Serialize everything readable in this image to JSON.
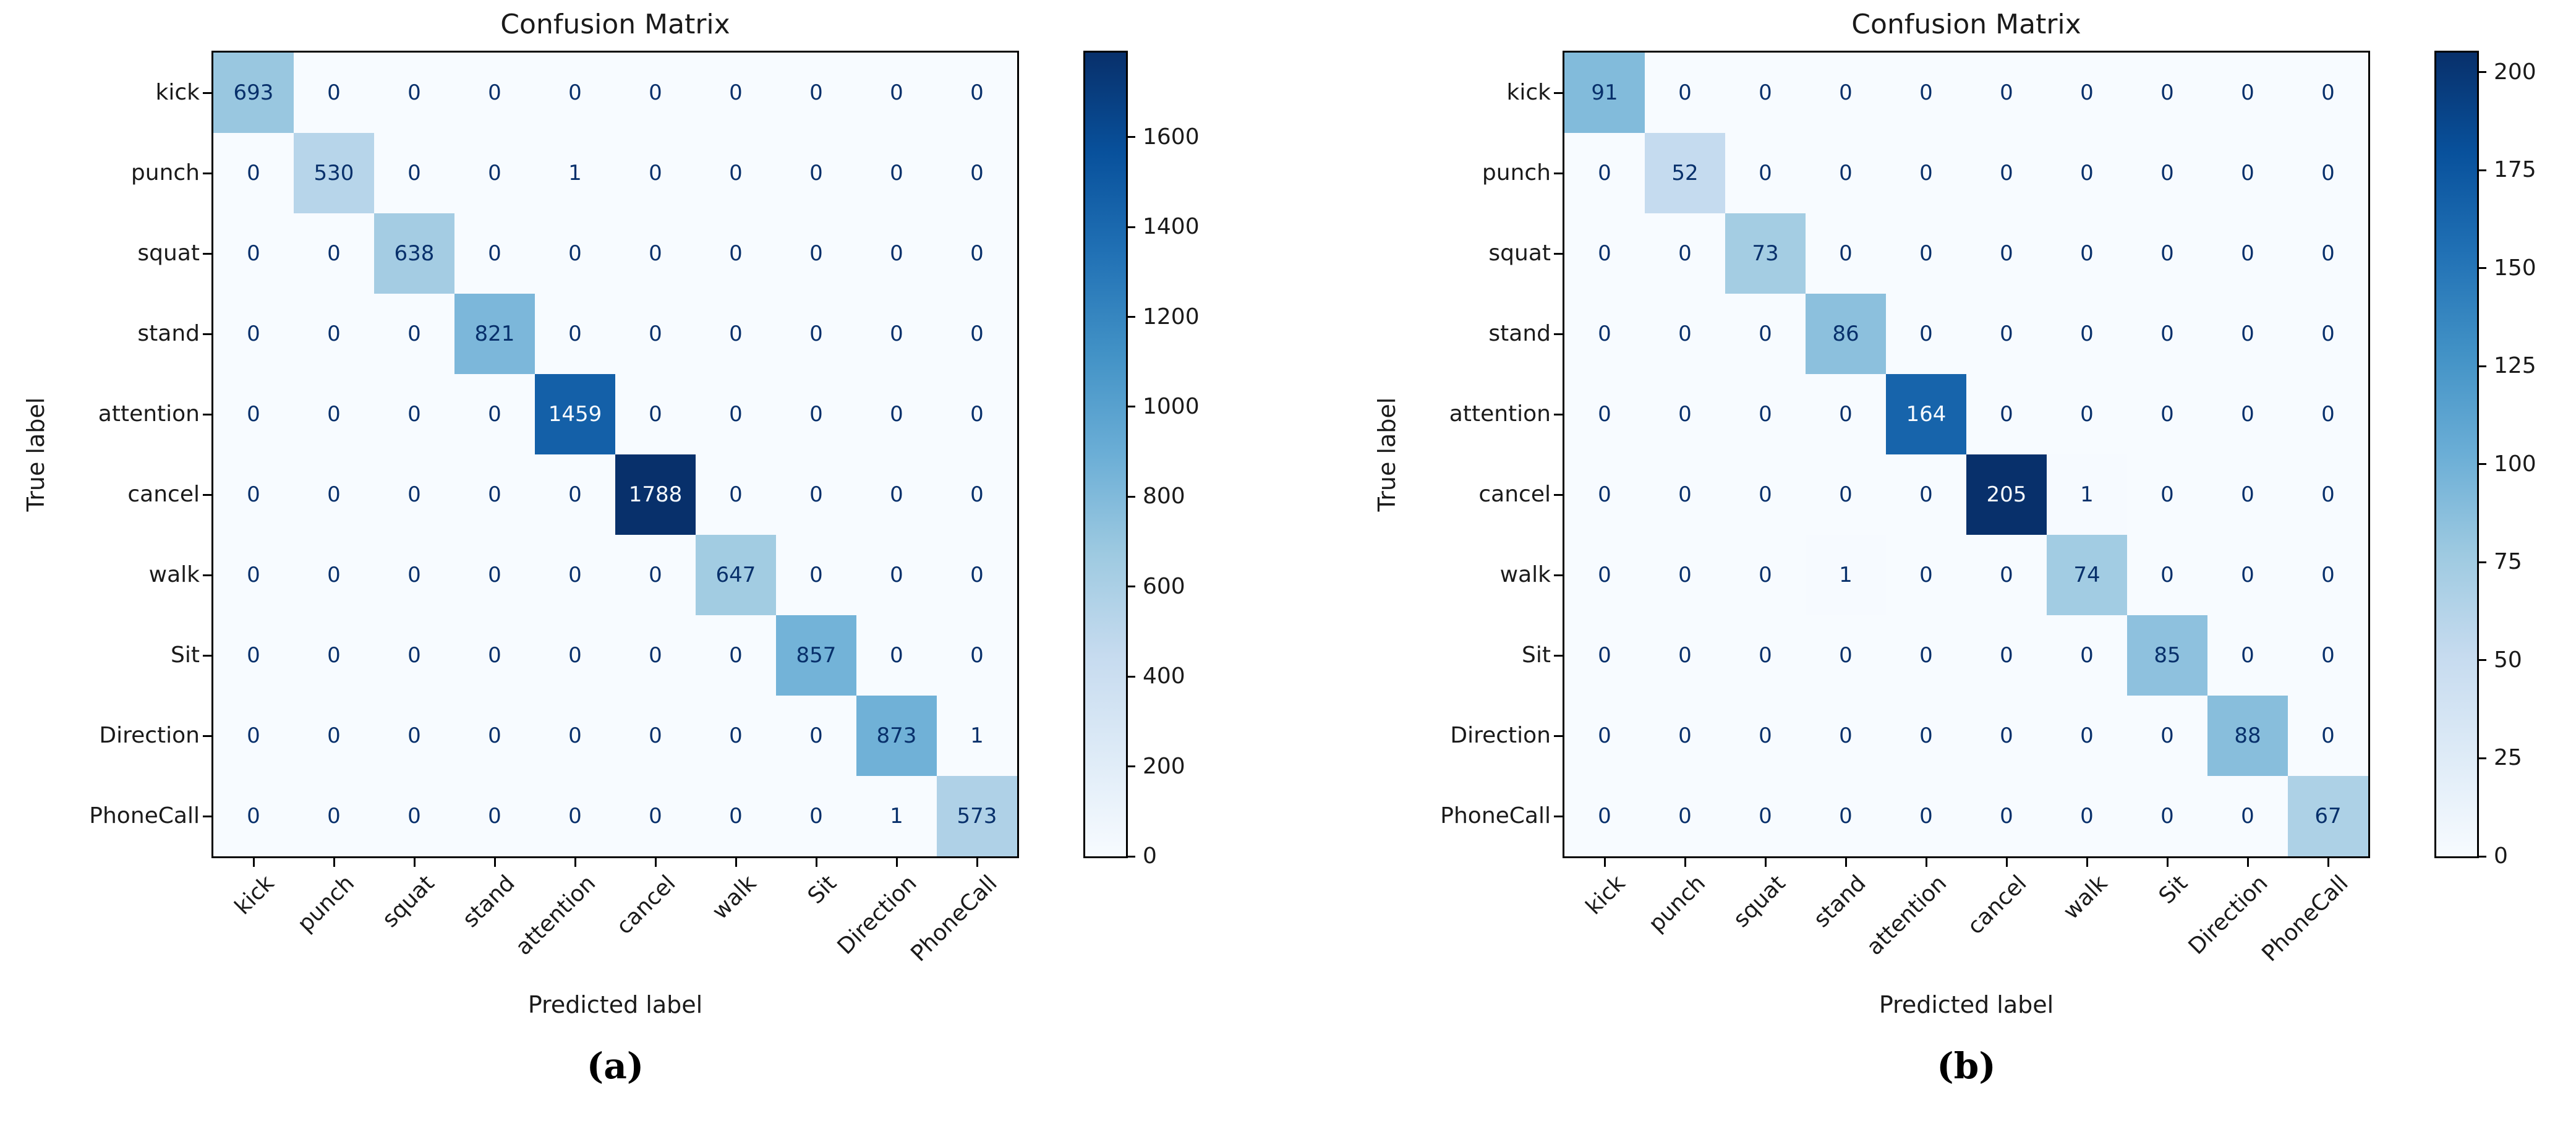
{
  "chart_data": [
    {
      "type": "heatmap",
      "title": "Confusion Matrix",
      "xlabel": "Predicted label",
      "ylabel": "True label",
      "caption": "(a)",
      "colormap": "Blues",
      "categories": [
        "kick",
        "punch",
        "squat",
        "stand",
        "attention",
        "cancel",
        "walk",
        "Sit",
        "Direction",
        "PhoneCall"
      ],
      "matrix": [
        [
          693,
          0,
          0,
          0,
          0,
          0,
          0,
          0,
          0,
          0
        ],
        [
          0,
          530,
          0,
          0,
          1,
          0,
          0,
          0,
          0,
          0
        ],
        [
          0,
          0,
          638,
          0,
          0,
          0,
          0,
          0,
          0,
          0
        ],
        [
          0,
          0,
          0,
          821,
          0,
          0,
          0,
          0,
          0,
          0
        ],
        [
          0,
          0,
          0,
          0,
          1459,
          0,
          0,
          0,
          0,
          0
        ],
        [
          0,
          0,
          0,
          0,
          0,
          1788,
          0,
          0,
          0,
          0
        ],
        [
          0,
          0,
          0,
          0,
          0,
          0,
          647,
          0,
          0,
          0
        ],
        [
          0,
          0,
          0,
          0,
          0,
          0,
          0,
          857,
          0,
          0
        ],
        [
          0,
          0,
          0,
          0,
          0,
          0,
          0,
          0,
          873,
          1
        ],
        [
          0,
          0,
          0,
          0,
          0,
          0,
          0,
          0,
          1,
          573
        ]
      ],
      "vmin": 0,
      "vmax": 1788,
      "colorbar_ticks": [
        0,
        200,
        400,
        600,
        800,
        1000,
        1200,
        1400,
        1600
      ],
      "legend_position": "right"
    },
    {
      "type": "heatmap",
      "title": "Confusion Matrix",
      "xlabel": "Predicted label",
      "ylabel": "True label",
      "caption": "(b)",
      "colormap": "Blues",
      "categories": [
        "kick",
        "punch",
        "squat",
        "stand",
        "attention",
        "cancel",
        "walk",
        "Sit",
        "Direction",
        "PhoneCall"
      ],
      "matrix": [
        [
          91,
          0,
          0,
          0,
          0,
          0,
          0,
          0,
          0,
          0
        ],
        [
          0,
          52,
          0,
          0,
          0,
          0,
          0,
          0,
          0,
          0
        ],
        [
          0,
          0,
          73,
          0,
          0,
          0,
          0,
          0,
          0,
          0
        ],
        [
          0,
          0,
          0,
          86,
          0,
          0,
          0,
          0,
          0,
          0
        ],
        [
          0,
          0,
          0,
          0,
          164,
          0,
          0,
          0,
          0,
          0
        ],
        [
          0,
          0,
          0,
          0,
          0,
          205,
          1,
          0,
          0,
          0
        ],
        [
          0,
          0,
          0,
          1,
          0,
          0,
          74,
          0,
          0,
          0
        ],
        [
          0,
          0,
          0,
          0,
          0,
          0,
          0,
          85,
          0,
          0
        ],
        [
          0,
          0,
          0,
          0,
          0,
          0,
          0,
          0,
          88,
          0
        ],
        [
          0,
          0,
          0,
          0,
          0,
          0,
          0,
          0,
          0,
          67
        ]
      ],
      "vmin": 0,
      "vmax": 205,
      "colorbar_ticks": [
        0,
        25,
        50,
        75,
        100,
        125,
        150,
        175,
        200
      ],
      "legend_position": "right"
    }
  ],
  "colors": {
    "background": "#ffffff",
    "cmap_low": "#f7fbff",
    "cmap_high": "#08306b",
    "cell_text_dark": "#08306b",
    "cell_text_light": "#f7fbff",
    "axis_text": "#1a1a1a",
    "spine": "#000000"
  }
}
